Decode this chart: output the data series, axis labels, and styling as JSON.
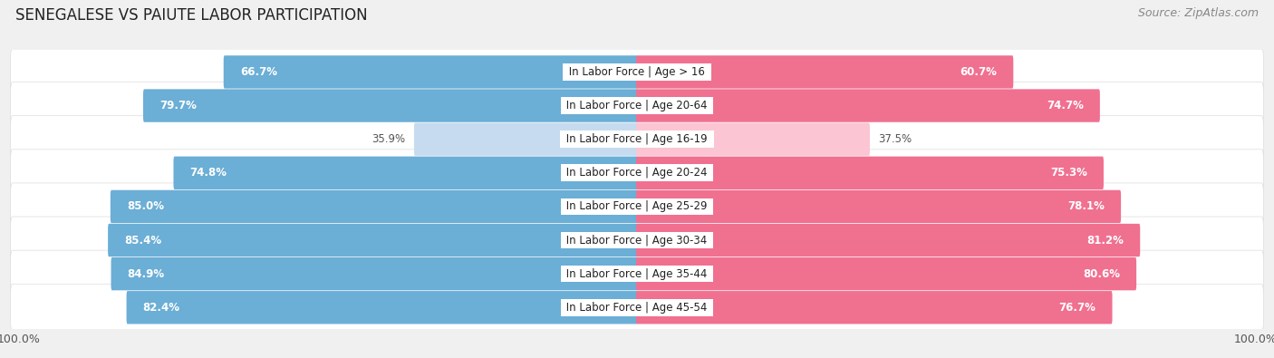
{
  "title": "SENEGALESE VS PAIUTE LABOR PARTICIPATION",
  "source": "Source: ZipAtlas.com",
  "categories": [
    "In Labor Force | Age > 16",
    "In Labor Force | Age 20-64",
    "In Labor Force | Age 16-19",
    "In Labor Force | Age 20-24",
    "In Labor Force | Age 25-29",
    "In Labor Force | Age 30-34",
    "In Labor Force | Age 35-44",
    "In Labor Force | Age 45-54"
  ],
  "senegalese": [
    66.7,
    79.7,
    35.9,
    74.8,
    85.0,
    85.4,
    84.9,
    82.4
  ],
  "paiute": [
    60.7,
    74.7,
    37.5,
    75.3,
    78.1,
    81.2,
    80.6,
    76.7
  ],
  "senegalese_color": "#6baed6",
  "paiute_color": "#f07090",
  "senegalese_light_color": "#c6dbef",
  "paiute_light_color": "#fcc5d3",
  "bg_color": "#f0f0f0",
  "bar_height": 0.68,
  "max_value": 100.0,
  "title_fontsize": 12,
  "label_fontsize": 8.5,
  "value_fontsize": 8.5,
  "source_fontsize": 9
}
